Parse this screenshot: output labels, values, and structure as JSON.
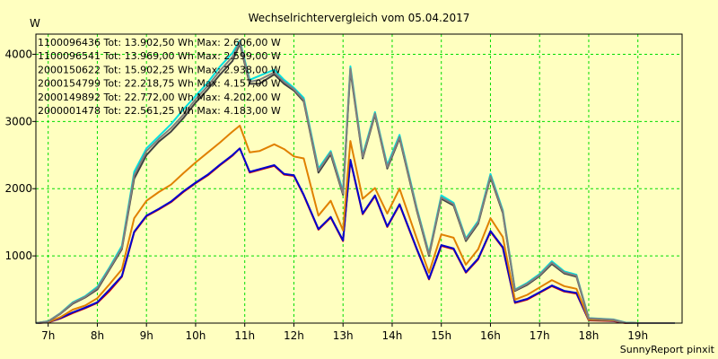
{
  "chart_data": {
    "type": "line",
    "title": "Wechselrichtervergleich vom 05.04.2017",
    "ylabel": "W",
    "footer": "SunnyReport pinxit",
    "xlim": [
      6.75,
      19.9
    ],
    "ylim": [
      0,
      4300
    ],
    "x_ticks": [
      7,
      8,
      9,
      10,
      11,
      12,
      13,
      14,
      15,
      16,
      17,
      18,
      19
    ],
    "x_tick_labels": [
      "7h",
      "8h",
      "9h",
      "10h",
      "11h",
      "12h",
      "13h",
      "14h",
      "15h",
      "16h",
      "17h",
      "18h",
      "19h"
    ],
    "y_ticks": [
      1000,
      2000,
      3000,
      4000
    ],
    "y_tick_labels": [
      "1000",
      "2000",
      "3000",
      "4000"
    ],
    "grid": true,
    "x": [
      6.75,
      7.0,
      7.25,
      7.5,
      7.75,
      8.0,
      8.25,
      8.5,
      8.75,
      9.0,
      9.25,
      9.5,
      9.75,
      10.0,
      10.25,
      10.5,
      10.75,
      10.9,
      11.1,
      11.3,
      11.6,
      11.8,
      12.0,
      12.2,
      12.5,
      12.75,
      13.0,
      13.15,
      13.4,
      13.65,
      13.9,
      14.15,
      14.5,
      14.75,
      15.0,
      15.25,
      15.5,
      15.75,
      16.0,
      16.25,
      16.5,
      16.75,
      17.0,
      17.25,
      17.5,
      17.75,
      18.0,
      18.5,
      18.75,
      19.0,
      19.5,
      19.75
    ],
    "series": [
      {
        "name": "1100096436",
        "legend": "1100096436 Tot: 13.902,50 Wh Max: 2.606,00 W",
        "color": "#d00000",
        "values": [
          0,
          10,
          70,
          150,
          220,
          300,
          480,
          690,
          1350,
          1590,
          1690,
          1800,
          1950,
          2080,
          2200,
          2350,
          2490,
          2600,
          2240,
          2280,
          2340,
          2210,
          2190,
          1900,
          1390,
          1570,
          1220,
          2420,
          1620,
          1890,
          1430,
          1760,
          1100,
          650,
          1150,
          1100,
          750,
          950,
          1360,
          1120,
          300,
          350,
          450,
          550,
          470,
          440,
          40,
          30,
          0,
          0,
          0,
          0
        ]
      },
      {
        "name": "1100096541",
        "legend": "1100096541 Tot: 13.969,00 Wh Max: 2.599,00 W",
        "color": "#0000d0",
        "values": [
          0,
          12,
          75,
          160,
          230,
          310,
          500,
          700,
          1360,
          1600,
          1700,
          1810,
          1960,
          2090,
          2210,
          2360,
          2500,
          2599,
          2250,
          2290,
          2350,
          2220,
          2200,
          1910,
          1400,
          1580,
          1230,
          2430,
          1630,
          1900,
          1440,
          1770,
          1110,
          660,
          1160,
          1110,
          760,
          960,
          1370,
          1130,
          310,
          360,
          460,
          560,
          480,
          450,
          45,
          35,
          5,
          0,
          0,
          0
        ]
      },
      {
        "name": "2000150622",
        "legend": "2000150622 Tot: 15.902,25 Wh Max: 2.938,00 W",
        "color": "#e08000",
        "values": [
          0,
          15,
          90,
          200,
          260,
          370,
          580,
          800,
          1560,
          1820,
          1950,
          2060,
          2230,
          2390,
          2540,
          2690,
          2850,
          2938,
          2540,
          2560,
          2660,
          2590,
          2480,
          2450,
          1600,
          1820,
          1380,
          2710,
          1850,
          2010,
          1630,
          2000,
          1260,
          750,
          1320,
          1270,
          870,
          1100,
          1560,
          1280,
          350,
          420,
          530,
          640,
          550,
          510,
          50,
          40,
          5,
          0,
          0,
          0
        ]
      },
      {
        "name": "2000154799",
        "legend": "2000154799 Tot: 22.218,75 Wh Max: 4.157,00 W",
        "color": "#404040",
        "values": [
          0,
          25,
          140,
          290,
          380,
          500,
          800,
          1100,
          2150,
          2500,
          2700,
          2850,
          3050,
          3280,
          3480,
          3700,
          3900,
          4157,
          3560,
          3560,
          3700,
          3560,
          3460,
          3300,
          2240,
          2510,
          1910,
          3760,
          2450,
          3100,
          2300,
          2750,
          1680,
          1000,
          1850,
          1750,
          1220,
          1480,
          2170,
          1640,
          480,
          570,
          700,
          880,
          740,
          690,
          70,
          50,
          5,
          0,
          0,
          0
        ]
      },
      {
        "name": "2000149892",
        "legend": "2000149892 Tot: 22.772,00 Wh Max: 4.202,00 W",
        "color": "#00e0e0",
        "values": [
          0,
          28,
          150,
          310,
          400,
          540,
          830,
          1150,
          2250,
          2600,
          2780,
          2960,
          3180,
          3380,
          3580,
          3820,
          4020,
          4202,
          3620,
          3680,
          3770,
          3620,
          3500,
          3350,
          2300,
          2560,
          1960,
          3820,
          2500,
          3140,
          2350,
          2800,
          1720,
          1040,
          1900,
          1790,
          1260,
          1520,
          2220,
          1680,
          500,
          600,
          730,
          920,
          770,
          720,
          75,
          55,
          8,
          0,
          0,
          0
        ]
      },
      {
        "name": "2000001478",
        "legend": "2000001478 Tot: 22.561,25 Wh Max: 4.183,00 W",
        "color": "#808080",
        "values": [
          0,
          26,
          145,
          300,
          390,
          520,
          815,
          1120,
          2200,
          2560,
          2740,
          2900,
          3100,
          3330,
          3530,
          3760,
          3960,
          4183,
          3590,
          3620,
          3730,
          3590,
          3480,
          3320,
          2270,
          2540,
          1930,
          3790,
          2470,
          3120,
          2320,
          2770,
          1700,
          1020,
          1870,
          1770,
          1240,
          1500,
          2190,
          1660,
          490,
          585,
          715,
          900,
          755,
          705,
          72,
          52,
          6,
          0,
          0,
          0
        ]
      }
    ]
  }
}
